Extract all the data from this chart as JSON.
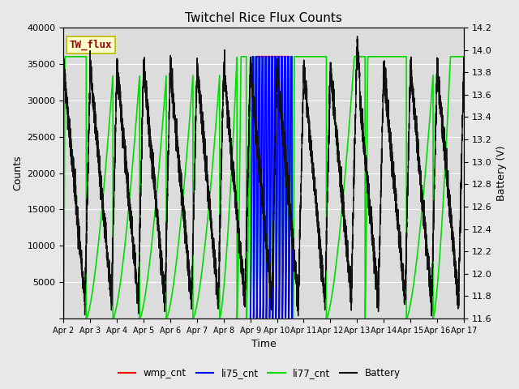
{
  "title": "Twitchel Rice Flux Counts",
  "xlabel": "Time",
  "ylabel_left": "Counts",
  "ylabel_right": "Battery (V)",
  "ylim_left": [
    0,
    40000
  ],
  "ylim_right": [
    11.6,
    14.2
  ],
  "fig_facecolor": "#e8e8e8",
  "axes_facecolor": "#dcdcdc",
  "xtick_labels": [
    "Apr 2",
    "Apr 3",
    "Apr 4",
    "Apr 5",
    "Apr 6",
    "Apr 7",
    "Apr 8",
    "Apr 9",
    "Apr 10",
    "Apr 11",
    "Apr 12",
    "Apr 13",
    "Apr 14",
    "Apr 15",
    "Apr 16",
    "Apr 17"
  ],
  "yticks_left": [
    0,
    5000,
    10000,
    15000,
    20000,
    25000,
    30000,
    35000,
    40000
  ],
  "yticks_right": [
    11.6,
    11.8,
    12.0,
    12.2,
    12.4,
    12.6,
    12.8,
    13.0,
    13.2,
    13.4,
    13.6,
    13.8,
    14.0,
    14.2
  ],
  "annotation_box_text": "TW_flux",
  "annotation_box_color": "#ffffcc",
  "annotation_box_edge": "#bbbb00",
  "annotation_text_color": "#990000",
  "legend_entries": [
    "wmp_cnt",
    "li75_cnt",
    "li77_cnt",
    "Battery"
  ],
  "legend_colors": [
    "#ff0000",
    "#0000ff",
    "#00dd00",
    "#111111"
  ],
  "wmp_color": "#ff0000",
  "li75_color": "#0000ff",
  "li77_color": "#00dd00",
  "battery_color": "#111111",
  "lw_flux": 1.2,
  "lw_battery": 1.0,
  "grid_color": "#ffffff",
  "figsize": [
    6.4,
    4.8
  ],
  "dpi": 100
}
